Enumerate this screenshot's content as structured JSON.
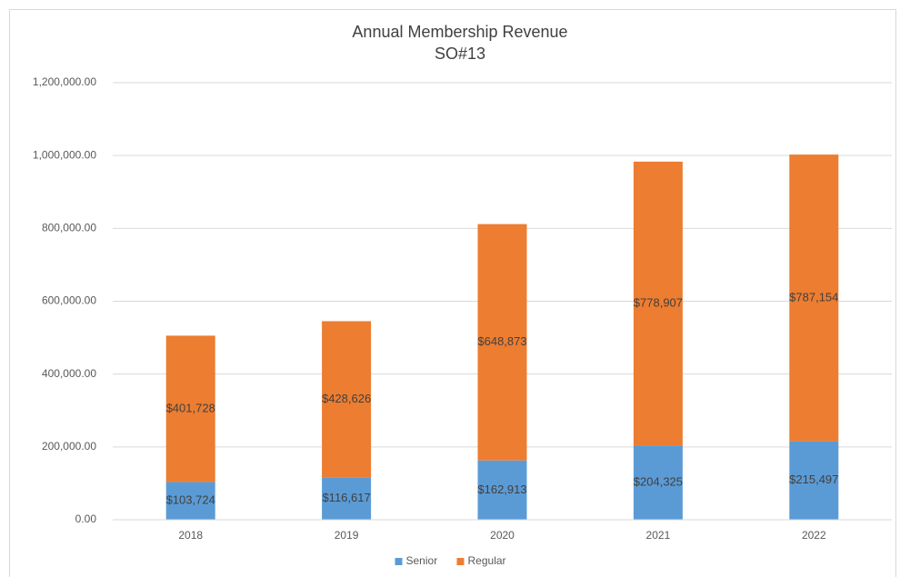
{
  "chart_data": {
    "type": "stacked_bar",
    "title": "Annual Membership Revenue",
    "subtitle": "SO#13",
    "categories": [
      "2018",
      "2019",
      "2020",
      "2021",
      "2022"
    ],
    "series": [
      {
        "name": "Senior",
        "color": "#5b9bd5",
        "values": [
          103724,
          116617,
          162913,
          204325,
          215497
        ],
        "value_labels": [
          "$103,724",
          "$116,617",
          "$162,913",
          "$204,325",
          "$215,497"
        ]
      },
      {
        "name": "Regular",
        "color": "#ed7d31",
        "values": [
          401728,
          428626,
          648873,
          778907,
          787154
        ],
        "value_labels": [
          "$401,728",
          "$428,626",
          "$648,873",
          "$778,907",
          "$787,154"
        ]
      }
    ],
    "ylim": [
      0,
      1200000
    ],
    "yticks": [
      {
        "value": 0,
        "label": "0.00"
      },
      {
        "value": 200000,
        "label": "200,000.00"
      },
      {
        "value": 400000,
        "label": "400,000.00"
      },
      {
        "value": 600000,
        "label": "600,000.00"
      },
      {
        "value": 800000,
        "label": "800,000.00"
      },
      {
        "value": 1000000,
        "label": "1,000,000.00"
      },
      {
        "value": 1200000,
        "label": "1,200,000.00"
      }
    ],
    "grid": true,
    "legend": "bottom"
  }
}
